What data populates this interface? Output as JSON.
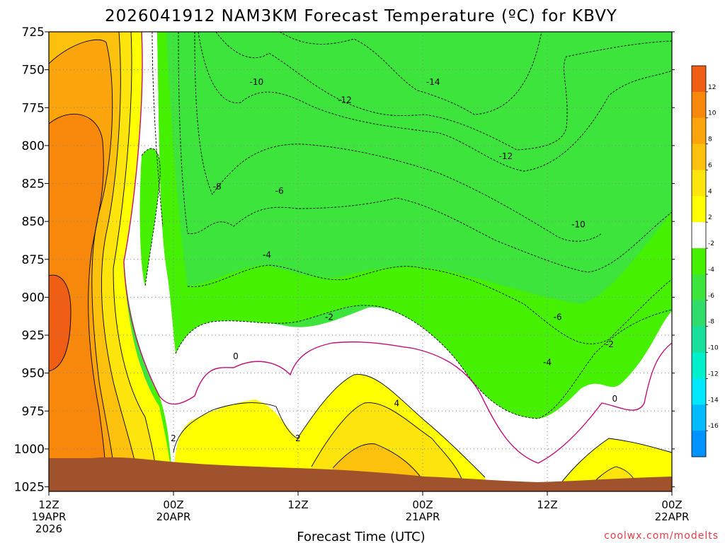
{
  "chart_data": {
    "type": "heatmap",
    "title": "2026041912 NAM3KM Forecast Temperature (ºC) for KBVY",
    "xlabel": "Forecast Time (UTC)",
    "ylabel": "",
    "x_range_hours": [
      0,
      60
    ],
    "y_range": [
      1028,
      725
    ],
    "y_ticks": [
      "725",
      "750",
      "775",
      "800",
      "825",
      "850",
      "875",
      "900",
      "925",
      "950",
      "975",
      "1000",
      "1025"
    ],
    "y_tick_values": [
      725,
      750,
      775,
      800,
      825,
      850,
      875,
      900,
      925,
      950,
      975,
      1000,
      1025
    ],
    "x_ticks": [
      {
        "hours": 0,
        "line1": "12Z",
        "line2": "19APR",
        "line3": "2026"
      },
      {
        "hours": 12,
        "line1": "00Z",
        "line2": "20APR",
        "line3": ""
      },
      {
        "hours": 24,
        "line1": "12Z",
        "line2": "",
        "line3": ""
      },
      {
        "hours": 36,
        "line1": "00Z",
        "line2": "21APR",
        "line3": ""
      },
      {
        "hours": 48,
        "line1": "12Z",
        "line2": "",
        "line3": ""
      },
      {
        "hours": 60,
        "line1": "00Z",
        "line2": "22APR",
        "line3": ""
      }
    ],
    "colorbar": {
      "labels": [
        "12",
        "10",
        "8",
        "6",
        "4",
        "2",
        "-2",
        "-4",
        "-6",
        "-8",
        "-10",
        "-12",
        "-14",
        "-16"
      ],
      "colors": [
        "#f05d14",
        "#f8880c",
        "#fba40c",
        "#fcc10c",
        "#fde40c",
        "#ffff00",
        "#ffffff",
        "#45f000",
        "#3ce43c",
        "#30dc6c",
        "#18e09c",
        "#00f0cc",
        "#00e8ff",
        "#00bcff",
        "#0092ff"
      ]
    },
    "contour_labels": [
      {
        "text": "-14",
        "hours": 37.0,
        "p": 758
      },
      {
        "text": "-12",
        "hours": 28.5,
        "p": 770
      },
      {
        "text": "-12",
        "hours": 44.0,
        "p": 807
      },
      {
        "text": "-10",
        "hours": 20.0,
        "p": 758
      },
      {
        "text": "-10",
        "hours": 51.0,
        "p": 852
      },
      {
        "text": "-8",
        "hours": 16.2,
        "p": 827
      },
      {
        "text": "-6",
        "hours": 22.2,
        "p": 830
      },
      {
        "text": "-6",
        "hours": 49.0,
        "p": 913
      },
      {
        "text": "-4",
        "hours": 21.0,
        "p": 872
      },
      {
        "text": "-4",
        "hours": 48.0,
        "p": 943
      },
      {
        "text": "-2",
        "hours": 27.0,
        "p": 913
      },
      {
        "text": "-2",
        "hours": 54.0,
        "p": 931
      },
      {
        "text": "0",
        "hours": 18.0,
        "p": 939
      },
      {
        "text": "0",
        "hours": 54.5,
        "p": 967
      },
      {
        "text": "2",
        "hours": 12.0,
        "p": 993
      },
      {
        "text": "2",
        "hours": 24.0,
        "p": 993
      },
      {
        "text": "4",
        "hours": 33.5,
        "p": 970
      }
    ]
  },
  "credit": "coolwx.com/modelts"
}
